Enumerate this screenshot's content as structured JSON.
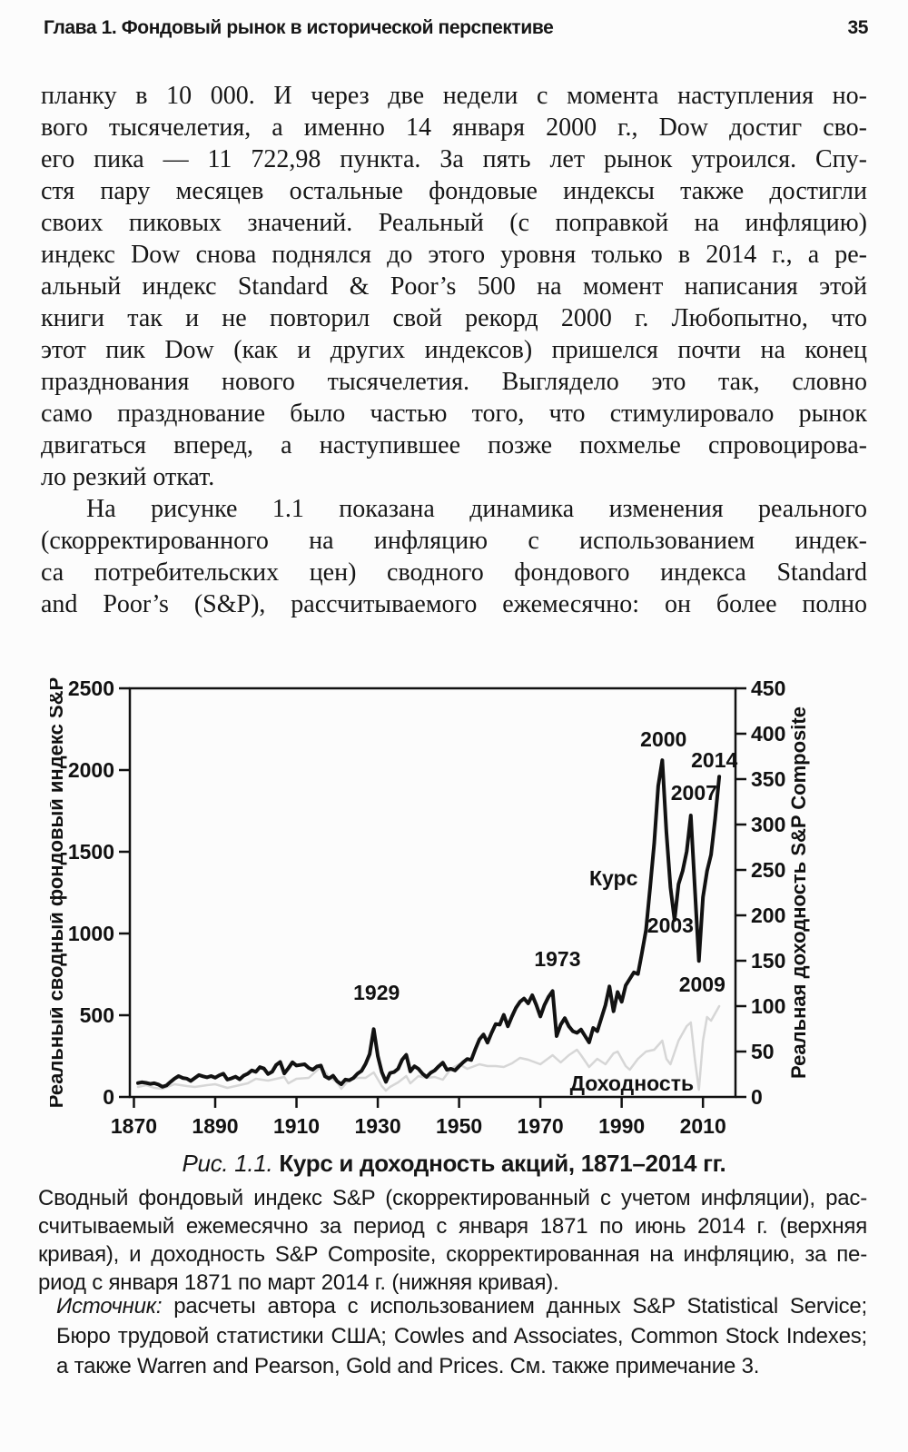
{
  "header": {
    "running_head": "Глава 1. Фондовый рынок в исторической перспективе",
    "page_number": "35"
  },
  "body": {
    "p1": [
      "планку в 10 000. И через две недели с момента наступления но-",
      "вого тысячелетия, а именно 14 января 2000 г., Dow достиг сво-",
      "его пика — 11 722,98 пункта. За пять лет рынок утроился. Спу-",
      "стя пару месяцев остальные фондовые индексы также достигли",
      "своих пиковых значений. Реальный (с поправкой на инфляцию)",
      "индекс Dow снова поднялся до этого уровня только в 2014 г., а ре-",
      "альный индекс Standard & Poor’s 500 на момент написания этой",
      "книги так и не повторил свой рекорд 2000 г. Любопытно, что",
      "этот пик Dow (как и других индексов) пришелся почти на конец",
      "празднования нового тысячелетия. Выглядело это так, словно",
      "само празднование было частью того, что стимулировало рынок",
      "двигаться вперед, а наступившее позже похмелье спровоцирова-",
      "ло резкий откат."
    ],
    "p2": [
      "На рисунке 1.1 показана динамика изменения реального",
      "(скорректированного на инфляцию с использованием индек-",
      "са потребительских цен) сводного фондового индекса Standard",
      "and Poor’s (S&P), рассчитываемого ежемесячно: он более полно"
    ]
  },
  "figure": {
    "caption_number": "Рис. 1.1.",
    "caption_title": " Курс и доходность акций, 1871–2014 гг.",
    "description": [
      "Сводный фондовый индекс S&P (скорректированный с учетом инфляции), рас-",
      "считываемый ежемесячно за период с января 1871 по июнь 2014 г. (верхняя",
      "кривая), и доходность S&P Composite, скорректированная на инфляцию, за пе-",
      "риод с января 1871 по март 2014 г. (нижняя кривая)."
    ],
    "source_label": "Источник:",
    "source": [
      " расчеты автора с использованием данных S&P Statistical Service;",
      "Бюро трудовой статистики США; Cowles and Associates, Common Stock Indexes;",
      "а также Warren and Pearson, Gold and Prices. См. также примечание 3."
    ]
  },
  "chart_data": {
    "type": "line",
    "title": "Рис. 1.1. Курс и доходность акций, 1871–2014 гг.",
    "grid": false,
    "x_range": [
      1869,
      2018
    ],
    "x_ticks": [
      1870,
      1890,
      1910,
      1930,
      1950,
      1970,
      1990,
      2010
    ],
    "left_axis": {
      "label": "Реальный сводный фондовый индекс S&P",
      "range": [
        0,
        2500
      ],
      "ticks": [
        0,
        500,
        1000,
        1500,
        2000,
        2500
      ]
    },
    "right_axis": {
      "label": "Реальная доходность S&P Composite",
      "range": [
        0,
        450
      ],
      "ticks": [
        0,
        50,
        100,
        150,
        200,
        250,
        300,
        350,
        400,
        450
      ]
    },
    "series": [
      {
        "name": "Курс",
        "axis": "left",
        "color": "#121212",
        "width": 4,
        "points": [
          [
            1871,
            85
          ],
          [
            1872,
            90
          ],
          [
            1873,
            86
          ],
          [
            1874,
            80
          ],
          [
            1875,
            84
          ],
          [
            1876,
            76
          ],
          [
            1877,
            62
          ],
          [
            1878,
            70
          ],
          [
            1879,
            92
          ],
          [
            1880,
            112
          ],
          [
            1881,
            128
          ],
          [
            1882,
            116
          ],
          [
            1883,
            112
          ],
          [
            1884,
            98
          ],
          [
            1885,
            116
          ],
          [
            1886,
            134
          ],
          [
            1887,
            126
          ],
          [
            1888,
            120
          ],
          [
            1889,
            128
          ],
          [
            1890,
            118
          ],
          [
            1891,
            132
          ],
          [
            1892,
            142
          ],
          [
            1893,
            106
          ],
          [
            1894,
            114
          ],
          [
            1895,
            124
          ],
          [
            1896,
            108
          ],
          [
            1897,
            130
          ],
          [
            1898,
            142
          ],
          [
            1899,
            162
          ],
          [
            1900,
            154
          ],
          [
            1901,
            182
          ],
          [
            1902,
            174
          ],
          [
            1903,
            140
          ],
          [
            1904,
            154
          ],
          [
            1905,
            196
          ],
          [
            1906,
            214
          ],
          [
            1907,
            144
          ],
          [
            1908,
            176
          ],
          [
            1909,
            212
          ],
          [
            1910,
            192
          ],
          [
            1911,
            196
          ],
          [
            1912,
            200
          ],
          [
            1913,
            178
          ],
          [
            1914,
            166
          ],
          [
            1915,
            186
          ],
          [
            1916,
            192
          ],
          [
            1917,
            126
          ],
          [
            1918,
            112
          ],
          [
            1919,
            130
          ],
          [
            1920,
            96
          ],
          [
            1921,
            78
          ],
          [
            1922,
            106
          ],
          [
            1923,
            102
          ],
          [
            1924,
            116
          ],
          [
            1925,
            142
          ],
          [
            1926,
            160
          ],
          [
            1927,
            202
          ],
          [
            1928,
            262
          ],
          [
            1929,
            415
          ],
          [
            1930,
            250
          ],
          [
            1931,
            152
          ],
          [
            1932,
            92
          ],
          [
            1933,
            146
          ],
          [
            1934,
            152
          ],
          [
            1935,
            172
          ],
          [
            1936,
            228
          ],
          [
            1937,
            258
          ],
          [
            1938,
            156
          ],
          [
            1939,
            188
          ],
          [
            1940,
            172
          ],
          [
            1941,
            142
          ],
          [
            1942,
            122
          ],
          [
            1943,
            148
          ],
          [
            1944,
            162
          ],
          [
            1945,
            188
          ],
          [
            1946,
            210
          ],
          [
            1947,
            166
          ],
          [
            1948,
            172
          ],
          [
            1949,
            162
          ],
          [
            1950,
            188
          ],
          [
            1951,
            212
          ],
          [
            1952,
            232
          ],
          [
            1953,
            226
          ],
          [
            1954,
            292
          ],
          [
            1955,
            352
          ],
          [
            1956,
            382
          ],
          [
            1957,
            332
          ],
          [
            1958,
            392
          ],
          [
            1959,
            446
          ],
          [
            1960,
            442
          ],
          [
            1961,
            502
          ],
          [
            1962,
            432
          ],
          [
            1963,
            492
          ],
          [
            1964,
            546
          ],
          [
            1965,
            582
          ],
          [
            1966,
            602
          ],
          [
            1967,
            572
          ],
          [
            1968,
            622
          ],
          [
            1969,
            562
          ],
          [
            1970,
            492
          ],
          [
            1971,
            562
          ],
          [
            1972,
            612
          ],
          [
            1973,
            648
          ],
          [
            1974,
            372
          ],
          [
            1975,
            442
          ],
          [
            1976,
            482
          ],
          [
            1977,
            432
          ],
          [
            1978,
            402
          ],
          [
            1979,
            392
          ],
          [
            1980,
            412
          ],
          [
            1981,
            372
          ],
          [
            1982,
            334
          ],
          [
            1983,
            422
          ],
          [
            1984,
            402
          ],
          [
            1985,
            482
          ],
          [
            1986,
            562
          ],
          [
            1987,
            676
          ],
          [
            1988,
            524
          ],
          [
            1989,
            642
          ],
          [
            1990,
            582
          ],
          [
            1991,
            682
          ],
          [
            1992,
            722
          ],
          [
            1993,
            762
          ],
          [
            1994,
            752
          ],
          [
            1995,
            882
          ],
          [
            1996,
            1022
          ],
          [
            1997,
            1282
          ],
          [
            1998,
            1552
          ],
          [
            1999,
            1902
          ],
          [
            2000,
            2060
          ],
          [
            2001,
            1622
          ],
          [
            2002,
            1282
          ],
          [
            2003,
            1082
          ],
          [
            2004,
            1302
          ],
          [
            2005,
            1382
          ],
          [
            2006,
            1502
          ],
          [
            2007,
            1722
          ],
          [
            2008,
            1282
          ],
          [
            2009,
            832
          ],
          [
            2010,
            1222
          ],
          [
            2011,
            1382
          ],
          [
            2012,
            1482
          ],
          [
            2013,
            1702
          ],
          [
            2014,
            1960
          ]
        ]
      },
      {
        "name": "Доходность",
        "axis": "right",
        "color": "#d6d6d6",
        "width": 2.5,
        "points": [
          [
            1871,
            11
          ],
          [
            1873,
            13
          ],
          [
            1875,
            10
          ],
          [
            1877,
            9
          ],
          [
            1880,
            14
          ],
          [
            1883,
            12
          ],
          [
            1885,
            11
          ],
          [
            1888,
            13
          ],
          [
            1890,
            14
          ],
          [
            1893,
            10
          ],
          [
            1895,
            12
          ],
          [
            1898,
            15
          ],
          [
            1900,
            20
          ],
          [
            1903,
            18
          ],
          [
            1905,
            20
          ],
          [
            1907,
            22
          ],
          [
            1908,
            15
          ],
          [
            1910,
            20
          ],
          [
            1913,
            21
          ],
          [
            1916,
            33
          ],
          [
            1917,
            28
          ],
          [
            1918,
            22
          ],
          [
            1920,
            16
          ],
          [
            1921,
            9
          ],
          [
            1923,
            19
          ],
          [
            1925,
            21
          ],
          [
            1927,
            21
          ],
          [
            1929,
            27
          ],
          [
            1931,
            12
          ],
          [
            1932,
            7
          ],
          [
            1933,
            11
          ],
          [
            1935,
            16
          ],
          [
            1937,
            23
          ],
          [
            1938,
            15
          ],
          [
            1940,
            23
          ],
          [
            1942,
            21
          ],
          [
            1944,
            22
          ],
          [
            1946,
            19
          ],
          [
            1948,
            31
          ],
          [
            1950,
            36
          ],
          [
            1952,
            31
          ],
          [
            1955,
            36
          ],
          [
            1957,
            34
          ],
          [
            1959,
            34
          ],
          [
            1961,
            33
          ],
          [
            1963,
            37
          ],
          [
            1965,
            43
          ],
          [
            1967,
            41
          ],
          [
            1970,
            36
          ],
          [
            1973,
            46
          ],
          [
            1974,
            42
          ],
          [
            1975,
            38
          ],
          [
            1977,
            46
          ],
          [
            1979,
            52
          ],
          [
            1980,
            46
          ],
          [
            1982,
            33
          ],
          [
            1984,
            42
          ],
          [
            1986,
            36
          ],
          [
            1988,
            48
          ],
          [
            1989,
            50
          ],
          [
            1991,
            34
          ],
          [
            1992,
            30
          ],
          [
            1994,
            42
          ],
          [
            1996,
            50
          ],
          [
            1998,
            52
          ],
          [
            2000,
            62
          ],
          [
            2001,
            42
          ],
          [
            2002,
            36
          ],
          [
            2004,
            62
          ],
          [
            2006,
            78
          ],
          [
            2007,
            82
          ],
          [
            2008,
            42
          ],
          [
            2009,
            8
          ],
          [
            2010,
            62
          ],
          [
            2011,
            88
          ],
          [
            2012,
            84
          ],
          [
            2013,
            92
          ],
          [
            2014,
            100
          ]
        ]
      }
    ],
    "annotations": [
      {
        "text": "1929",
        "x": 1929.7,
        "y": 640
      },
      {
        "text": "1973",
        "x": 1974.2,
        "y": 845
      },
      {
        "text": "2000",
        "x": 2000.3,
        "y": 2190
      },
      {
        "text": "2014",
        "x": 2012.8,
        "y": 2060
      },
      {
        "text": "2007",
        "x": 2007.8,
        "y": 1860
      },
      {
        "text": "Курс",
        "x": 1988,
        "y": 1340
      },
      {
        "text": "2003",
        "x": 2002,
        "y": 1050
      },
      {
        "text": "2009",
        "x": 2009.8,
        "y": 690
      },
      {
        "text": "Доходность",
        "x": 1992.5,
        "y": 82
      }
    ]
  }
}
